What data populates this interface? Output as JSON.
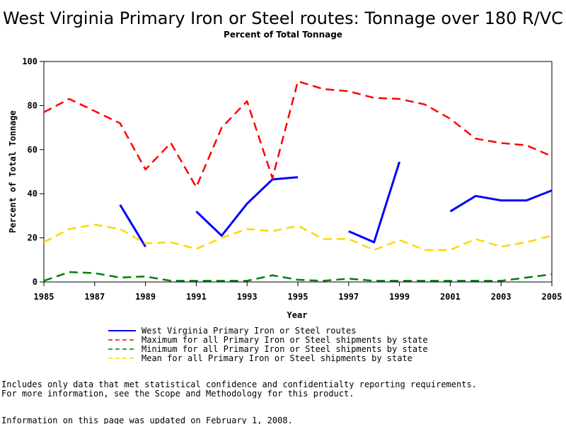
{
  "chart_data": {
    "type": "line",
    "title": "West Virginia Primary Iron or Steel routes: Tonnage over 180 R/VC",
    "subtitle": "Percent of Total Tonnage",
    "xlabel": "Year",
    "ylabel": "Percent of Total Tonnage",
    "xlim": [
      1985,
      2005
    ],
    "ylim": [
      0,
      100
    ],
    "x_ticks": [
      1985,
      1987,
      1989,
      1991,
      1993,
      1995,
      1997,
      1999,
      2001,
      2003,
      2005
    ],
    "y_ticks": [
      0,
      20,
      40,
      60,
      80,
      100
    ],
    "grid": false,
    "legend_position": "bottom",
    "series": [
      {
        "name": "West Virginia Primary Iron or Steel routes",
        "color": "#0000ff",
        "style": "solid",
        "points": [
          [
            1988,
            35
          ],
          [
            1989,
            16
          ],
          null,
          [
            1991,
            32
          ],
          [
            1992,
            21
          ],
          [
            1993,
            35.5
          ],
          [
            1994,
            46.5
          ],
          [
            1995,
            47.5
          ],
          null,
          [
            1997,
            23
          ],
          [
            1998,
            18
          ],
          [
            1999,
            54.5
          ],
          null,
          [
            2001,
            32
          ],
          [
            2002,
            39
          ],
          [
            2003,
            37
          ],
          [
            2004,
            37
          ],
          [
            2005,
            41.5
          ]
        ]
      },
      {
        "name": "Maximum for all Primary Iron or Steel shipments by state",
        "color": "#ff0000",
        "style": "dashed",
        "points": [
          [
            1985,
            77
          ],
          [
            1986,
            83
          ],
          [
            1987,
            77.5
          ],
          [
            1988,
            72
          ],
          [
            1989,
            51
          ],
          [
            1990,
            63
          ],
          [
            1991,
            43
          ],
          [
            1992,
            70
          ],
          [
            1993,
            82
          ],
          [
            1994,
            47
          ],
          [
            1995,
            91
          ],
          [
            1996,
            87.5
          ],
          [
            1997,
            86.5
          ],
          [
            1998,
            83.5
          ],
          [
            1999,
            83
          ],
          [
            2000,
            80.5
          ],
          [
            2001,
            74
          ],
          [
            2002,
            65
          ],
          [
            2003,
            63
          ],
          [
            2004,
            62
          ],
          [
            2005,
            57
          ]
        ]
      },
      {
        "name": "Minimum for all Primary Iron or Steel shipments by state",
        "color": "#008000",
        "style": "dashed",
        "points": [
          [
            1985,
            0.5
          ],
          [
            1986,
            4.5
          ],
          [
            1987,
            4
          ],
          [
            1988,
            2
          ],
          [
            1989,
            2.5
          ],
          [
            1990,
            0.5
          ],
          [
            1991,
            0.5
          ],
          [
            1992,
            0.5
          ],
          [
            1993,
            0.5
          ],
          [
            1994,
            3
          ],
          [
            1995,
            1
          ],
          [
            1996,
            0.5
          ],
          [
            1997,
            1.5
          ],
          [
            1998,
            0.5
          ],
          [
            1999,
            0.5
          ],
          [
            2000,
            0.5
          ],
          [
            2001,
            0.5
          ],
          [
            2002,
            0.5
          ],
          [
            2003,
            0.5
          ],
          [
            2004,
            2
          ],
          [
            2005,
            3.5
          ]
        ]
      },
      {
        "name": "Mean for all Primary Iron or Steel shipments by state",
        "color": "#ffd700",
        "style": "dashed",
        "points": [
          [
            1985,
            18
          ],
          [
            1986,
            24
          ],
          [
            1987,
            26
          ],
          [
            1988,
            24
          ],
          [
            1989,
            17.5
          ],
          [
            1990,
            18
          ],
          [
            1991,
            15
          ],
          [
            1992,
            20
          ],
          [
            1993,
            24
          ],
          [
            1994,
            23
          ],
          [
            1995,
            25.5
          ],
          [
            1996,
            19.5
          ],
          [
            1997,
            19.5
          ],
          [
            1998,
            14.5
          ],
          [
            1999,
            19
          ],
          [
            2000,
            14.5
          ],
          [
            2001,
            14.5
          ],
          [
            2002,
            19.5
          ],
          [
            2003,
            16
          ],
          [
            2004,
            18
          ],
          [
            2005,
            21
          ]
        ]
      }
    ]
  },
  "notes": [
    "Includes only data that met statistical confidence and confidentialty reporting requirements.",
    "For more information, see the Scope and Methodology for this product."
  ],
  "updated": "Information on this page was updated on February 1, 2008."
}
